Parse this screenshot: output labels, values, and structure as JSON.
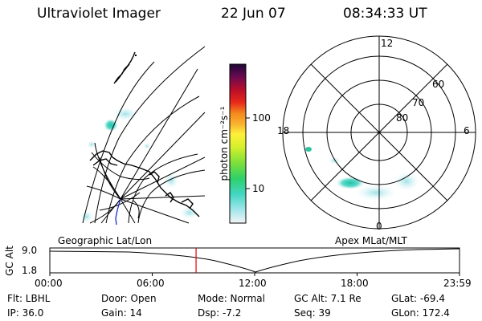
{
  "header": {
    "title": "Ultraviolet Imager",
    "date": "22 Jun 07",
    "time": "08:34:33 UT"
  },
  "colorbar": {
    "label": "photon cm⁻²s⁻¹",
    "ticks": [
      "100",
      "10"
    ]
  },
  "polar": {
    "mlt_labels": {
      "top": "12",
      "left": "18",
      "right": "6",
      "bottom": "0"
    },
    "lat_labels": [
      "60",
      "70",
      "80"
    ]
  },
  "projections": {
    "left": "Geographic Lat/Lon",
    "right": "Apex  MLat/MLT"
  },
  "altitude_plot": {
    "ylabel": "GC Alt",
    "y_ticks": [
      "9.0",
      "1.8"
    ],
    "x_ticks": [
      "00:00",
      "06:00",
      "12:00",
      "18:00",
      "23:59"
    ],
    "current_time_fraction": 0.357,
    "marker_color": "#e00000"
  },
  "info": {
    "filter": "Flt: LBHL",
    "ip": "IP: 36.0",
    "door": "Door: Open",
    "gain": "Gain: 14",
    "mode": "Mode: Normal",
    "dsp": "Dsp:    -7.2",
    "gc_alt": "GC Alt: 7.1 Re",
    "seq": "Seq: 39",
    "glat": "GLat:  -69.4",
    "glon": "GLon: 172.4"
  }
}
